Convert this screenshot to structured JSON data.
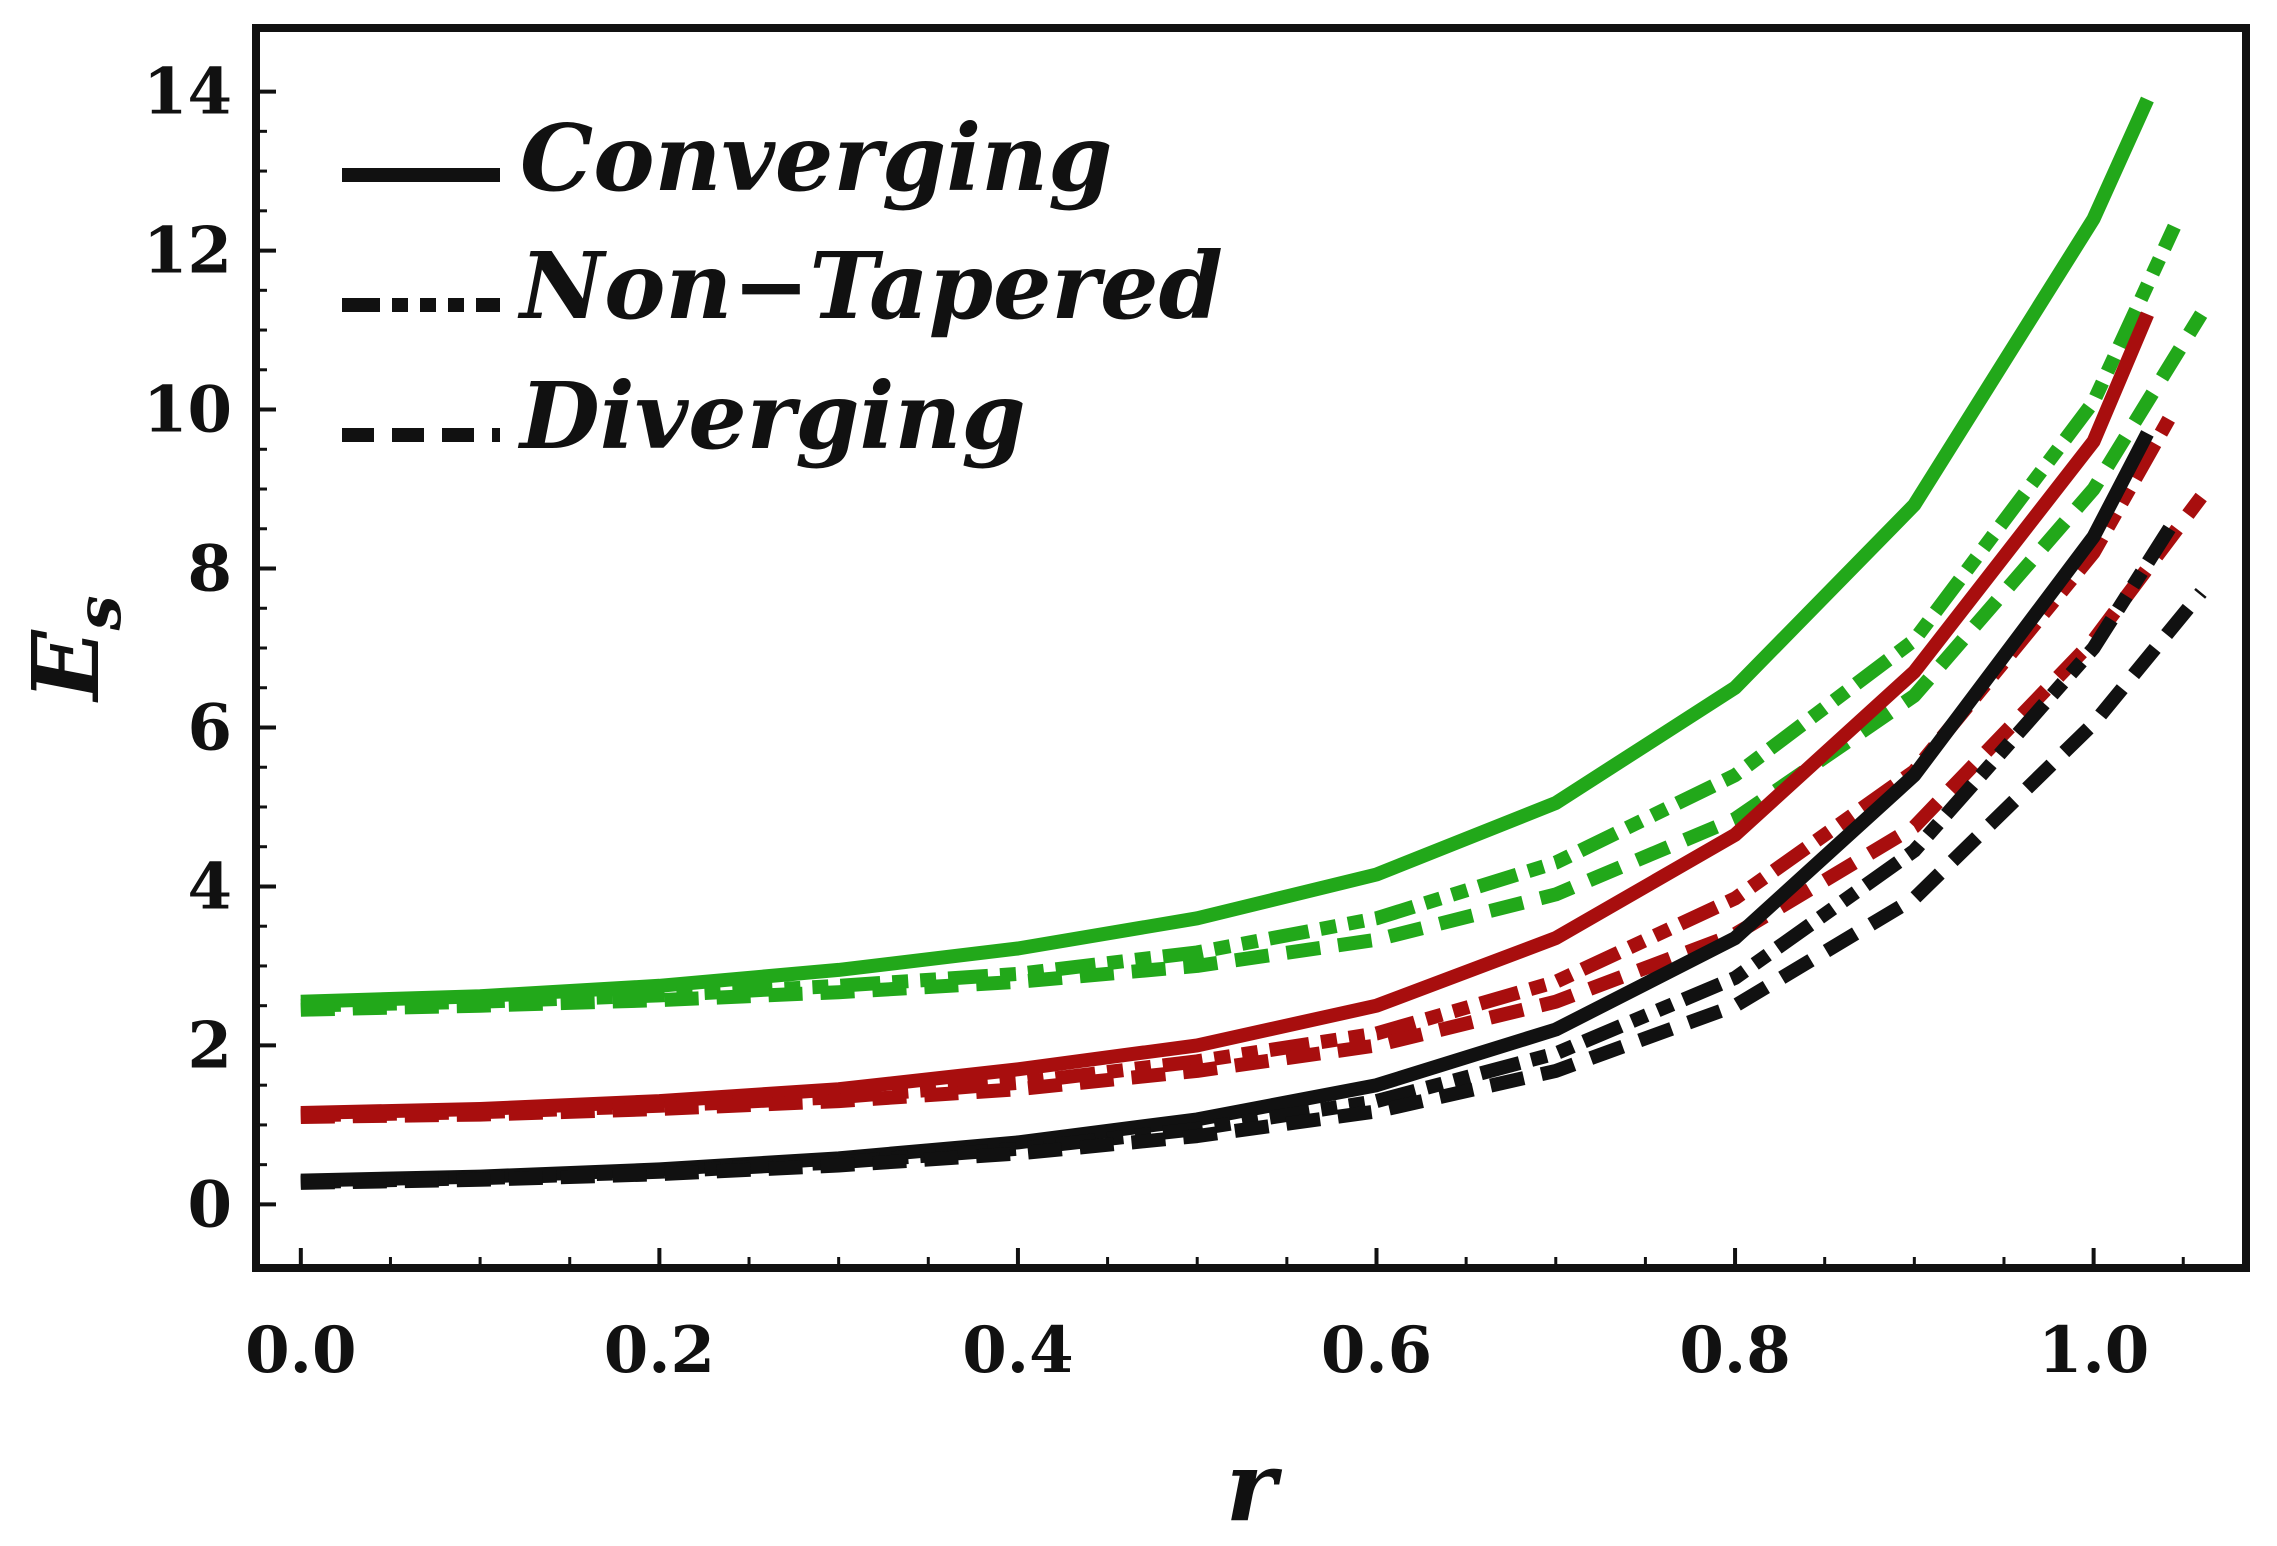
{
  "chart_data": {
    "type": "line",
    "title": "",
    "xlabel": "r",
    "ylabel": "E",
    "ylabel_subscript": "s",
    "xlim": [
      -0.025,
      1.085
    ],
    "ylim": [
      -0.8,
      14.8
    ],
    "xticks": [
      0.0,
      0.2,
      0.4,
      0.6,
      0.8,
      1.0
    ],
    "xtick_labels": [
      "0.0",
      "0.2",
      "0.4",
      "0.6",
      "0.8",
      "1.0"
    ],
    "yticks": [
      0,
      2,
      4,
      6,
      8,
      10,
      12,
      14
    ],
    "ytick_labels": [
      "0",
      "2",
      "4",
      "6",
      "8",
      "10",
      "12",
      "14"
    ],
    "grid": false,
    "legend": {
      "position": "top-left",
      "entries": [
        {
          "label": "Converging",
          "style": "solid"
        },
        {
          "label": "Non−Tapered",
          "style": "dashdot"
        },
        {
          "label": "Diverging",
          "style": "dashed"
        }
      ]
    },
    "colors": {
      "green": "#22a81a",
      "red": "#a80e0e",
      "black": "#111111"
    },
    "series": [
      {
        "name": "Green Converging",
        "color": "green",
        "style": "solid",
        "x": [
          0.0,
          0.1,
          0.2,
          0.3,
          0.4,
          0.5,
          0.6,
          0.7,
          0.8,
          0.9,
          1.0,
          1.03
        ],
        "y": [
          2.55,
          2.62,
          2.75,
          2.95,
          3.22,
          3.6,
          4.15,
          5.05,
          6.5,
          8.8,
          12.4,
          13.9
        ]
      },
      {
        "name": "Green Non-Tapered",
        "color": "green",
        "style": "dashdot",
        "x": [
          0.0,
          0.1,
          0.2,
          0.3,
          0.4,
          0.5,
          0.6,
          0.7,
          0.8,
          0.9,
          1.0,
          1.045
        ],
        "y": [
          2.5,
          2.55,
          2.63,
          2.75,
          2.9,
          3.17,
          3.6,
          4.3,
          5.4,
          7.1,
          10.1,
          12.3
        ]
      },
      {
        "name": "Green Diverging",
        "color": "green",
        "style": "dashed",
        "x": [
          0.0,
          0.1,
          0.2,
          0.3,
          0.4,
          0.5,
          0.6,
          0.7,
          0.8,
          0.9,
          1.0,
          1.06
        ],
        "y": [
          2.45,
          2.5,
          2.57,
          2.67,
          2.8,
          3.0,
          3.33,
          3.9,
          4.85,
          6.4,
          9.0,
          11.2
        ]
      },
      {
        "name": "Red Converging",
        "color": "red",
        "style": "solid",
        "x": [
          0.0,
          0.1,
          0.2,
          0.3,
          0.4,
          0.5,
          0.6,
          0.7,
          0.8,
          0.9,
          1.0,
          1.03
        ],
        "y": [
          1.15,
          1.2,
          1.3,
          1.45,
          1.7,
          2.0,
          2.5,
          3.35,
          4.65,
          6.7,
          9.6,
          11.2
        ]
      },
      {
        "name": "Red Non-Tapered",
        "color": "red",
        "style": "dashdot",
        "x": [
          0.0,
          0.1,
          0.2,
          0.3,
          0.4,
          0.5,
          0.6,
          0.7,
          0.8,
          0.9,
          1.0,
          1.045
        ],
        "y": [
          1.12,
          1.16,
          1.24,
          1.35,
          1.53,
          1.8,
          2.15,
          2.8,
          3.85,
          5.45,
          8.2,
          10.0
        ]
      },
      {
        "name": "Red Diverging",
        "color": "red",
        "style": "dashed",
        "x": [
          0.0,
          0.1,
          0.2,
          0.3,
          0.4,
          0.5,
          0.6,
          0.7,
          0.8,
          0.9,
          1.0,
          1.06
        ],
        "y": [
          1.1,
          1.13,
          1.2,
          1.3,
          1.45,
          1.68,
          2.0,
          2.55,
          3.4,
          4.75,
          7.1,
          8.9
        ]
      },
      {
        "name": "Black Converging",
        "color": "black",
        "style": "solid",
        "x": [
          0.0,
          0.1,
          0.2,
          0.3,
          0.4,
          0.5,
          0.6,
          0.7,
          0.8,
          0.9,
          1.0,
          1.03
        ],
        "y": [
          0.3,
          0.35,
          0.44,
          0.58,
          0.78,
          1.07,
          1.5,
          2.2,
          3.35,
          5.4,
          8.4,
          9.7
        ]
      },
      {
        "name": "Black Non-Tapered",
        "color": "black",
        "style": "dashdot",
        "x": [
          0.0,
          0.1,
          0.2,
          0.3,
          0.4,
          0.5,
          0.6,
          0.7,
          0.8,
          0.9,
          1.0,
          1.045
        ],
        "y": [
          0.28,
          0.33,
          0.41,
          0.53,
          0.7,
          0.95,
          1.3,
          1.9,
          2.85,
          4.45,
          7.0,
          8.6
        ]
      },
      {
        "name": "Black Diverging",
        "color": "black",
        "style": "dashed",
        "x": [
          0.0,
          0.1,
          0.2,
          0.3,
          0.4,
          0.5,
          0.6,
          0.7,
          0.8,
          0.9,
          1.0,
          1.06
        ],
        "y": [
          0.27,
          0.31,
          0.38,
          0.49,
          0.64,
          0.86,
          1.17,
          1.68,
          2.5,
          3.85,
          6.05,
          7.7
        ]
      }
    ]
  }
}
